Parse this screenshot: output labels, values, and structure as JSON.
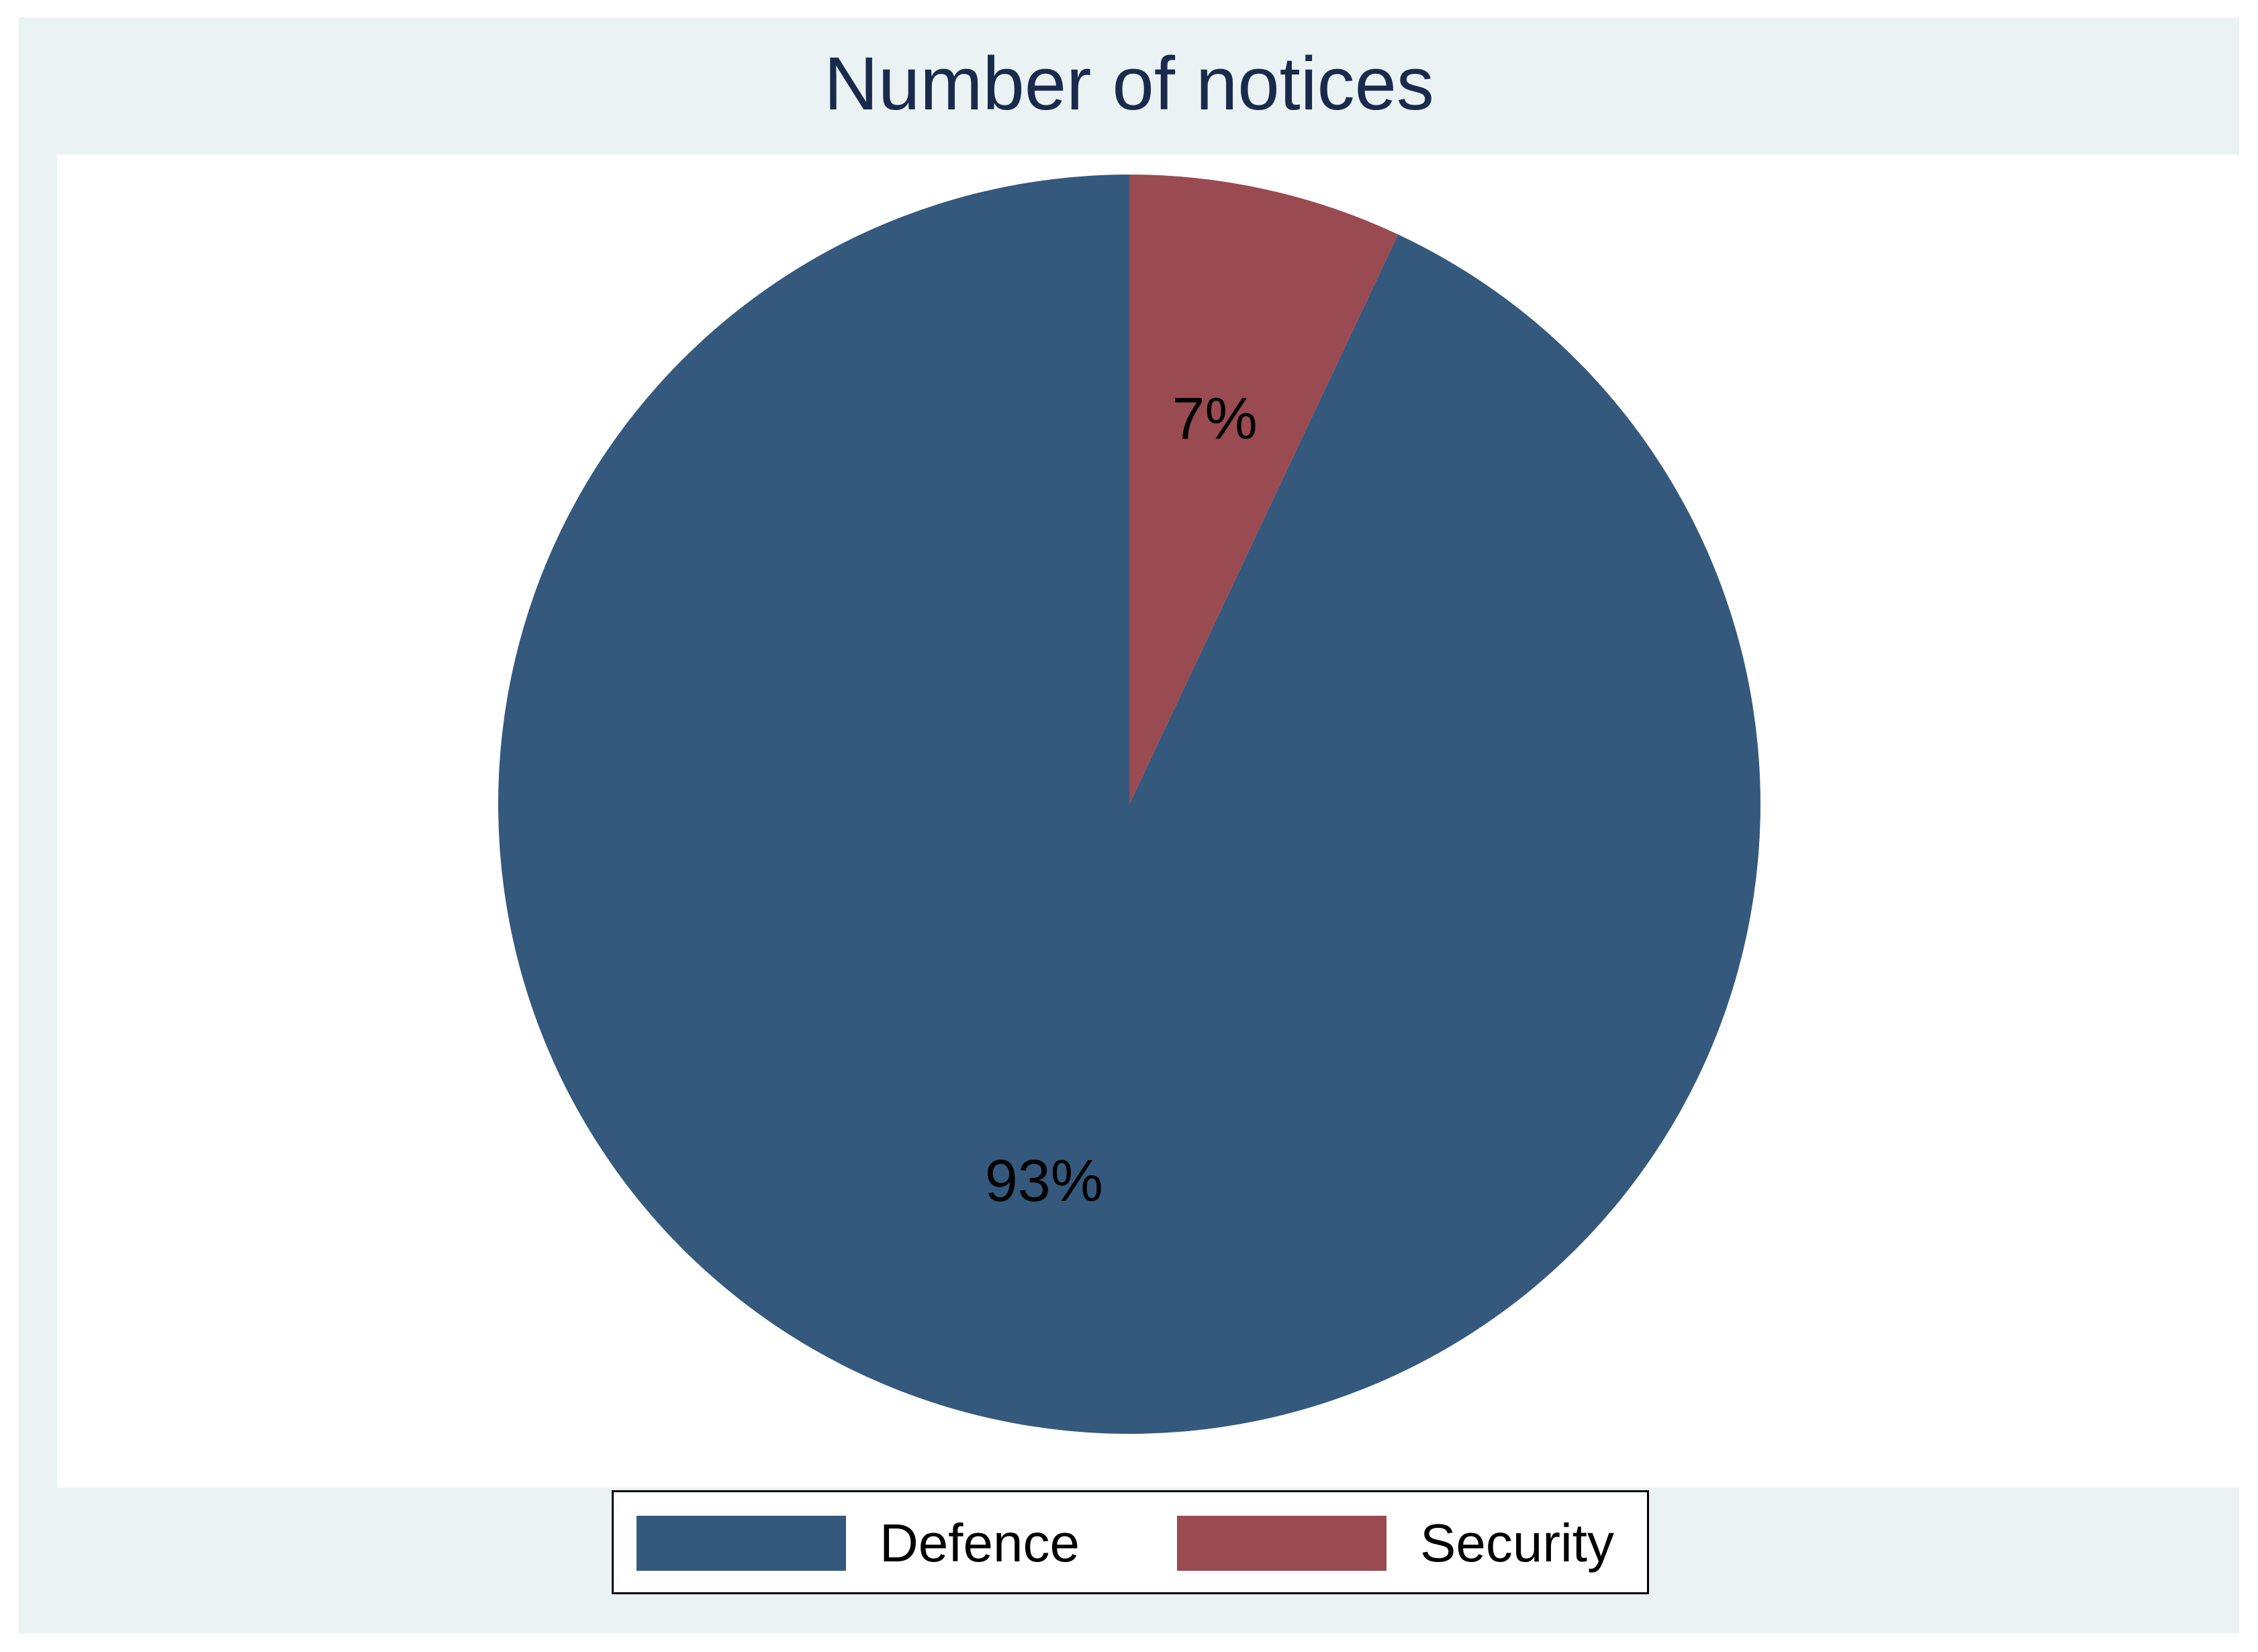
{
  "chart_data": {
    "type": "pie",
    "title": "Number of notices",
    "slices": [
      {
        "name": "Defence",
        "value": 93,
        "label": "93%",
        "color": "#34597d"
      },
      {
        "name": "Security",
        "value": 7,
        "label": "7%",
        "color": "#9a4a51"
      }
    ],
    "start_angle_deg": 0,
    "direction": "counterclockwise",
    "legend": {
      "position": "bottom",
      "entries": [
        "Defence",
        "Security"
      ]
    }
  },
  "colors": {
    "panel_background": "#eaf2f3",
    "plot_background": "#ffffff",
    "title_color": "#1a2a4c"
  }
}
